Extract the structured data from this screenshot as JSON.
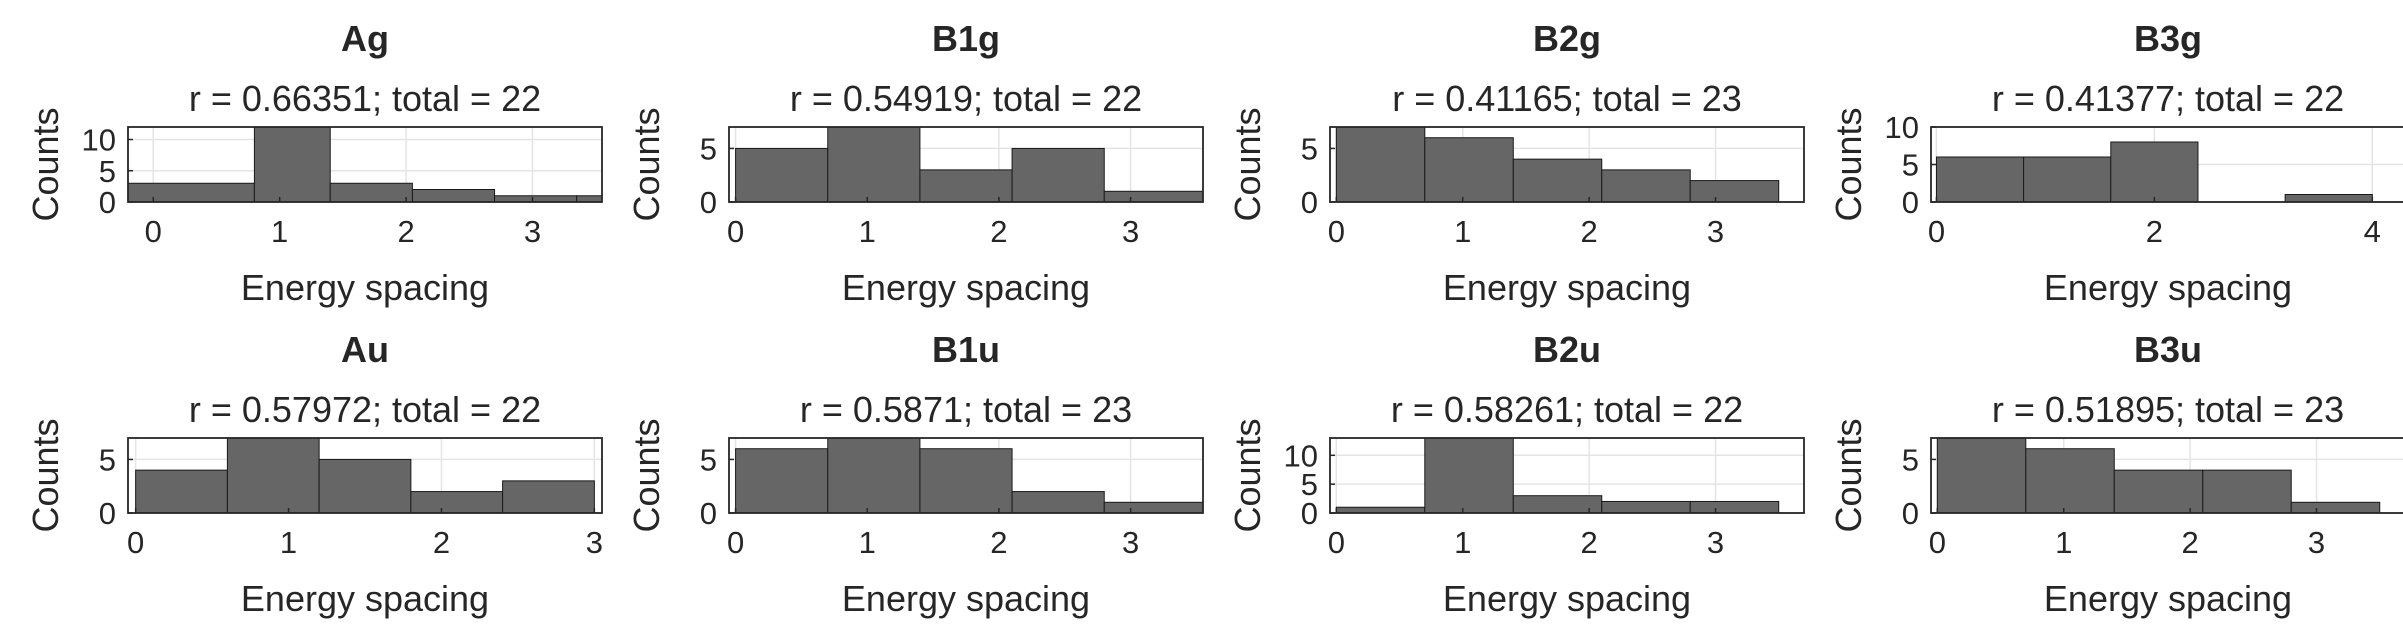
{
  "figure": {
    "bar_color": "#666666",
    "axis_color": "#262626"
  },
  "chart_data": [
    {
      "type": "bar",
      "title": "Ag",
      "subtitle": "r = 0.66351; total = 22",
      "xlabel": "Energy spacing",
      "ylabel": "Counts",
      "bin_edges": [
        -0.2,
        0.8,
        1.4,
        2.05,
        2.7,
        3.35,
        3.55
      ],
      "values": [
        3,
        12,
        3,
        2,
        1,
        1
      ],
      "xlim": [
        -0.2,
        3.55
      ],
      "ylim": [
        0,
        12
      ],
      "xticks": [
        0,
        1,
        2,
        3
      ],
      "yticks": [
        0,
        5,
        10
      ],
      "grid": true
    },
    {
      "type": "bar",
      "title": "B1g",
      "subtitle": "r = 0.54919; total = 22",
      "xlabel": "Energy spacing",
      "ylabel": "Counts",
      "bin_edges": [
        0,
        0.7,
        1.4,
        2.1,
        2.8,
        3.55
      ],
      "values": [
        5,
        7,
        3,
        5,
        1
      ],
      "xlim": [
        -0.05,
        3.55
      ],
      "ylim": [
        0,
        7
      ],
      "xticks": [
        0,
        1,
        2,
        3
      ],
      "yticks": [
        0,
        5
      ],
      "grid": true
    },
    {
      "type": "bar",
      "title": "B2g",
      "subtitle": "r = 0.41165; total = 23",
      "xlabel": "Energy spacing",
      "ylabel": "Counts",
      "bin_edges": [
        0,
        0.7,
        1.4,
        2.1,
        2.8,
        3.5
      ],
      "values": [
        7,
        6,
        4,
        3,
        2
      ],
      "xlim": [
        -0.05,
        3.7
      ],
      "ylim": [
        0,
        7
      ],
      "xticks": [
        0,
        1,
        2,
        3
      ],
      "yticks": [
        0,
        5
      ],
      "grid": true
    },
    {
      "type": "bar",
      "title": "B3g",
      "subtitle": "r = 0.41377; total = 22",
      "xlabel": "Energy spacing",
      "ylabel": "Counts",
      "bin_edges": [
        0,
        0.8,
        1.6,
        2.4,
        3.2,
        4.0
      ],
      "values": [
        6,
        6,
        8,
        0,
        1
      ],
      "xlim": [
        -0.05,
        4.3
      ],
      "ylim": [
        0,
        10
      ],
      "xticks": [
        0,
        2,
        4
      ],
      "yticks": [
        0,
        5,
        10
      ],
      "grid": true
    },
    {
      "type": "bar",
      "title": "Au",
      "subtitle": "r = 0.57972; total = 22",
      "xlabel": "Energy spacing",
      "ylabel": "Counts",
      "bin_edges": [
        0,
        0.6,
        1.2,
        1.8,
        2.4,
        3.0
      ],
      "values": [
        4,
        7,
        5,
        2,
        3
      ],
      "xlim": [
        -0.05,
        3.05
      ],
      "ylim": [
        0,
        7
      ],
      "xticks": [
        0,
        1,
        2,
        3
      ],
      "yticks": [
        0,
        5
      ],
      "grid": true
    },
    {
      "type": "bar",
      "title": "B1u",
      "subtitle": "r = 0.5871; total = 23",
      "xlabel": "Energy spacing",
      "ylabel": "Counts",
      "bin_edges": [
        0,
        0.7,
        1.4,
        2.1,
        2.8,
        3.55
      ],
      "values": [
        6,
        7,
        6,
        2,
        1
      ],
      "xlim": [
        -0.05,
        3.55
      ],
      "ylim": [
        0,
        7
      ],
      "xticks": [
        0,
        1,
        2,
        3
      ],
      "yticks": [
        0,
        5
      ],
      "grid": true
    },
    {
      "type": "bar",
      "title": "B2u",
      "subtitle": "r = 0.58261; total = 22",
      "xlabel": "Energy spacing",
      "ylabel": "Counts",
      "bin_edges": [
        0,
        0.7,
        1.4,
        2.1,
        2.8,
        3.5
      ],
      "values": [
        1,
        13,
        3,
        2,
        2
      ],
      "xlim": [
        -0.05,
        3.7
      ],
      "ylim": [
        0,
        13
      ],
      "xticks": [
        0,
        1,
        2,
        3
      ],
      "yticks": [
        0,
        5,
        10
      ],
      "grid": true
    },
    {
      "type": "bar",
      "title": "B3u",
      "subtitle": "r = 0.51895; total = 23",
      "xlabel": "Energy spacing",
      "ylabel": "Counts",
      "bin_edges": [
        0,
        0.7,
        1.4,
        2.1,
        2.8,
        3.5
      ],
      "values": [
        7,
        6,
        4,
        4,
        1
      ],
      "xlim": [
        -0.05,
        3.7
      ],
      "ylim": [
        0,
        7
      ],
      "xticks": [
        0,
        1,
        2,
        3
      ],
      "yticks": [
        0,
        5
      ],
      "grid": true
    }
  ]
}
